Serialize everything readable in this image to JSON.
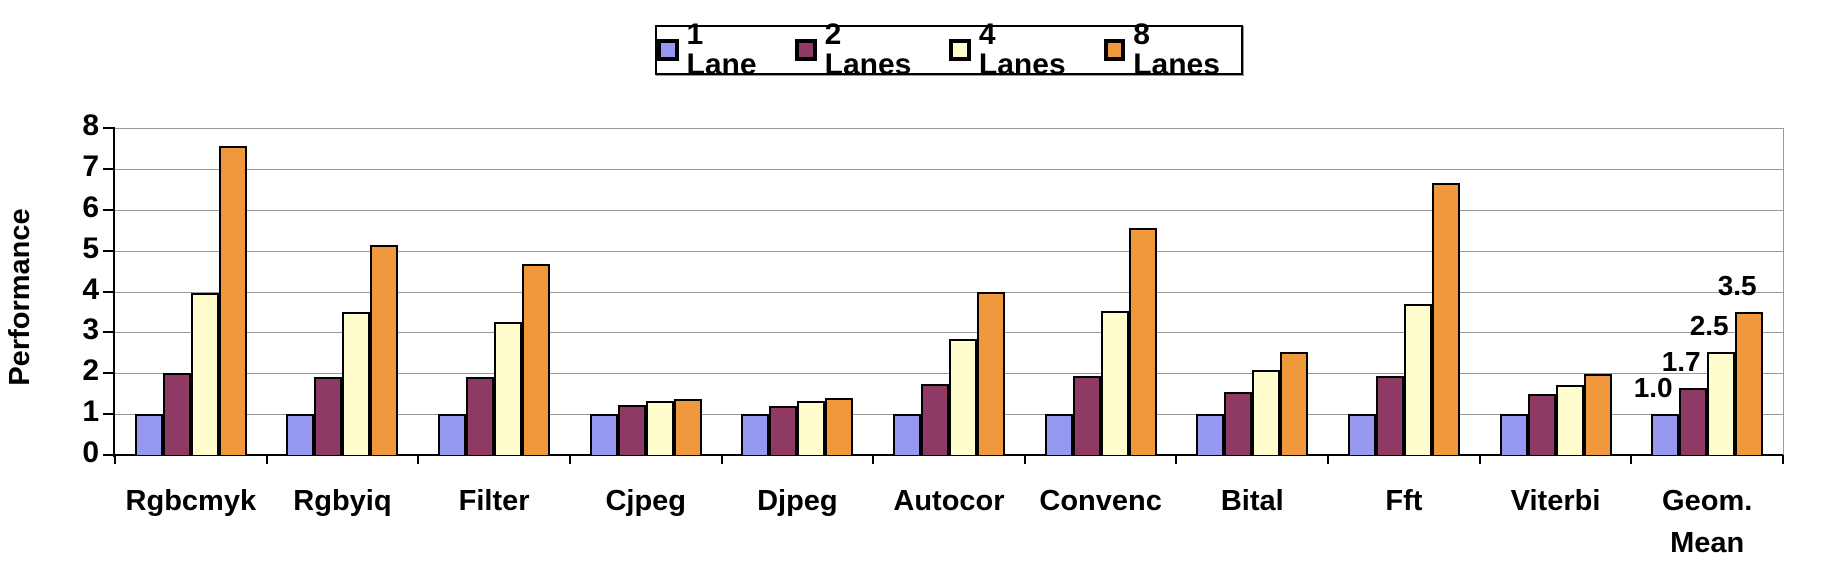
{
  "chart_data": {
    "type": "bar",
    "title": "",
    "xlabel": "",
    "ylabel": "Performance",
    "ylim": [
      0,
      8
    ],
    "ytick_step": 1,
    "grid": true,
    "legend_position": "top-center",
    "categories": [
      "Rgbcmyk",
      "Rgbyiq",
      "Filter",
      "Cjpeg",
      "Djpeg",
      "Autocor",
      "Convenc",
      "Bital",
      "Fft",
      "Viterbi",
      "Geom. Mean"
    ],
    "category_labels": [
      "Rgbcmyk",
      "Rgbyiq",
      "Filter",
      "Cjpeg",
      "Djpeg",
      "Autocor",
      "Convenc",
      "Bital",
      "Fft",
      "Viterbi",
      "Geom.\nMean"
    ],
    "series": [
      {
        "name": "1 Lane",
        "color": "#9798F0",
        "values": [
          1.0,
          1.0,
          1.0,
          1.0,
          1.0,
          1.0,
          1.0,
          1.0,
          1.0,
          1.0,
          1.0
        ]
      },
      {
        "name": "2 Lanes",
        "color": "#8F3A64",
        "values": [
          2.0,
          1.92,
          1.92,
          1.22,
          1.21,
          1.74,
          1.94,
          1.53,
          1.93,
          1.49,
          1.65
        ]
      },
      {
        "name": "4 Lanes",
        "color": "#FFFCCE",
        "values": [
          3.97,
          3.5,
          3.25,
          1.31,
          1.32,
          2.85,
          3.52,
          2.08,
          3.69,
          1.71,
          2.53
        ]
      },
      {
        "name": "8 Lanes",
        "color": "#F0993C",
        "values": [
          7.55,
          5.15,
          4.68,
          1.37,
          1.39,
          3.98,
          5.55,
          2.51,
          6.65,
          1.98,
          3.5
        ]
      }
    ],
    "bar_labels": {
      "category": "Geom. Mean",
      "values": [
        "1.0",
        "1.7",
        "2.5",
        "3.5"
      ]
    }
  },
  "axis": {
    "yticks": [
      "0",
      "1",
      "2",
      "3",
      "4",
      "5",
      "6",
      "7",
      "8"
    ]
  }
}
